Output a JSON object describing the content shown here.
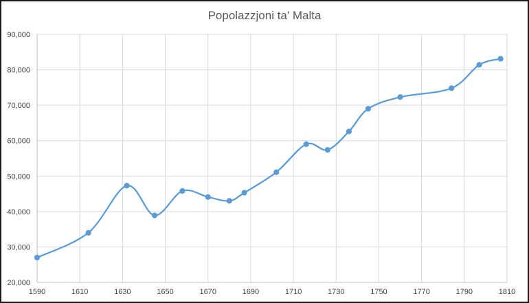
{
  "chart_data": {
    "type": "line",
    "title": "Popolazzjoni ta' Malta",
    "xlabel": "",
    "ylabel": "",
    "xlim": [
      1590,
      1810
    ],
    "ylim": [
      20000,
      90000
    ],
    "x_ticks": [
      1590,
      1610,
      1630,
      1650,
      1670,
      1690,
      1710,
      1730,
      1750,
      1770,
      1790,
      1810
    ],
    "y_ticks": [
      20000,
      30000,
      40000,
      50000,
      60000,
      70000,
      80000,
      90000
    ],
    "x_tick_labels": [
      "1590",
      "1610",
      "1630",
      "1650",
      "1670",
      "1690",
      "1710",
      "1730",
      "1750",
      "1770",
      "1790",
      "1810"
    ],
    "y_tick_labels": [
      "20,000",
      "30,000",
      "40,000",
      "50,000",
      "60,000",
      "70,000",
      "80,000",
      "90,000"
    ],
    "grid": true,
    "legend": "none",
    "smooth": true,
    "series_color": "#5b9bd5",
    "series": [
      {
        "x": [
          1590,
          1614,
          1632,
          1645,
          1658,
          1670,
          1680,
          1687,
          1702,
          1716,
          1726,
          1736,
          1745,
          1760,
          1784,
          1797,
          1807
        ],
        "values": [
          27000,
          34000,
          47300,
          38900,
          45800,
          44100,
          43000,
          45300,
          51100,
          59000,
          57400,
          62600,
          69000,
          72300,
          74800,
          81400,
          83100
        ]
      }
    ]
  }
}
